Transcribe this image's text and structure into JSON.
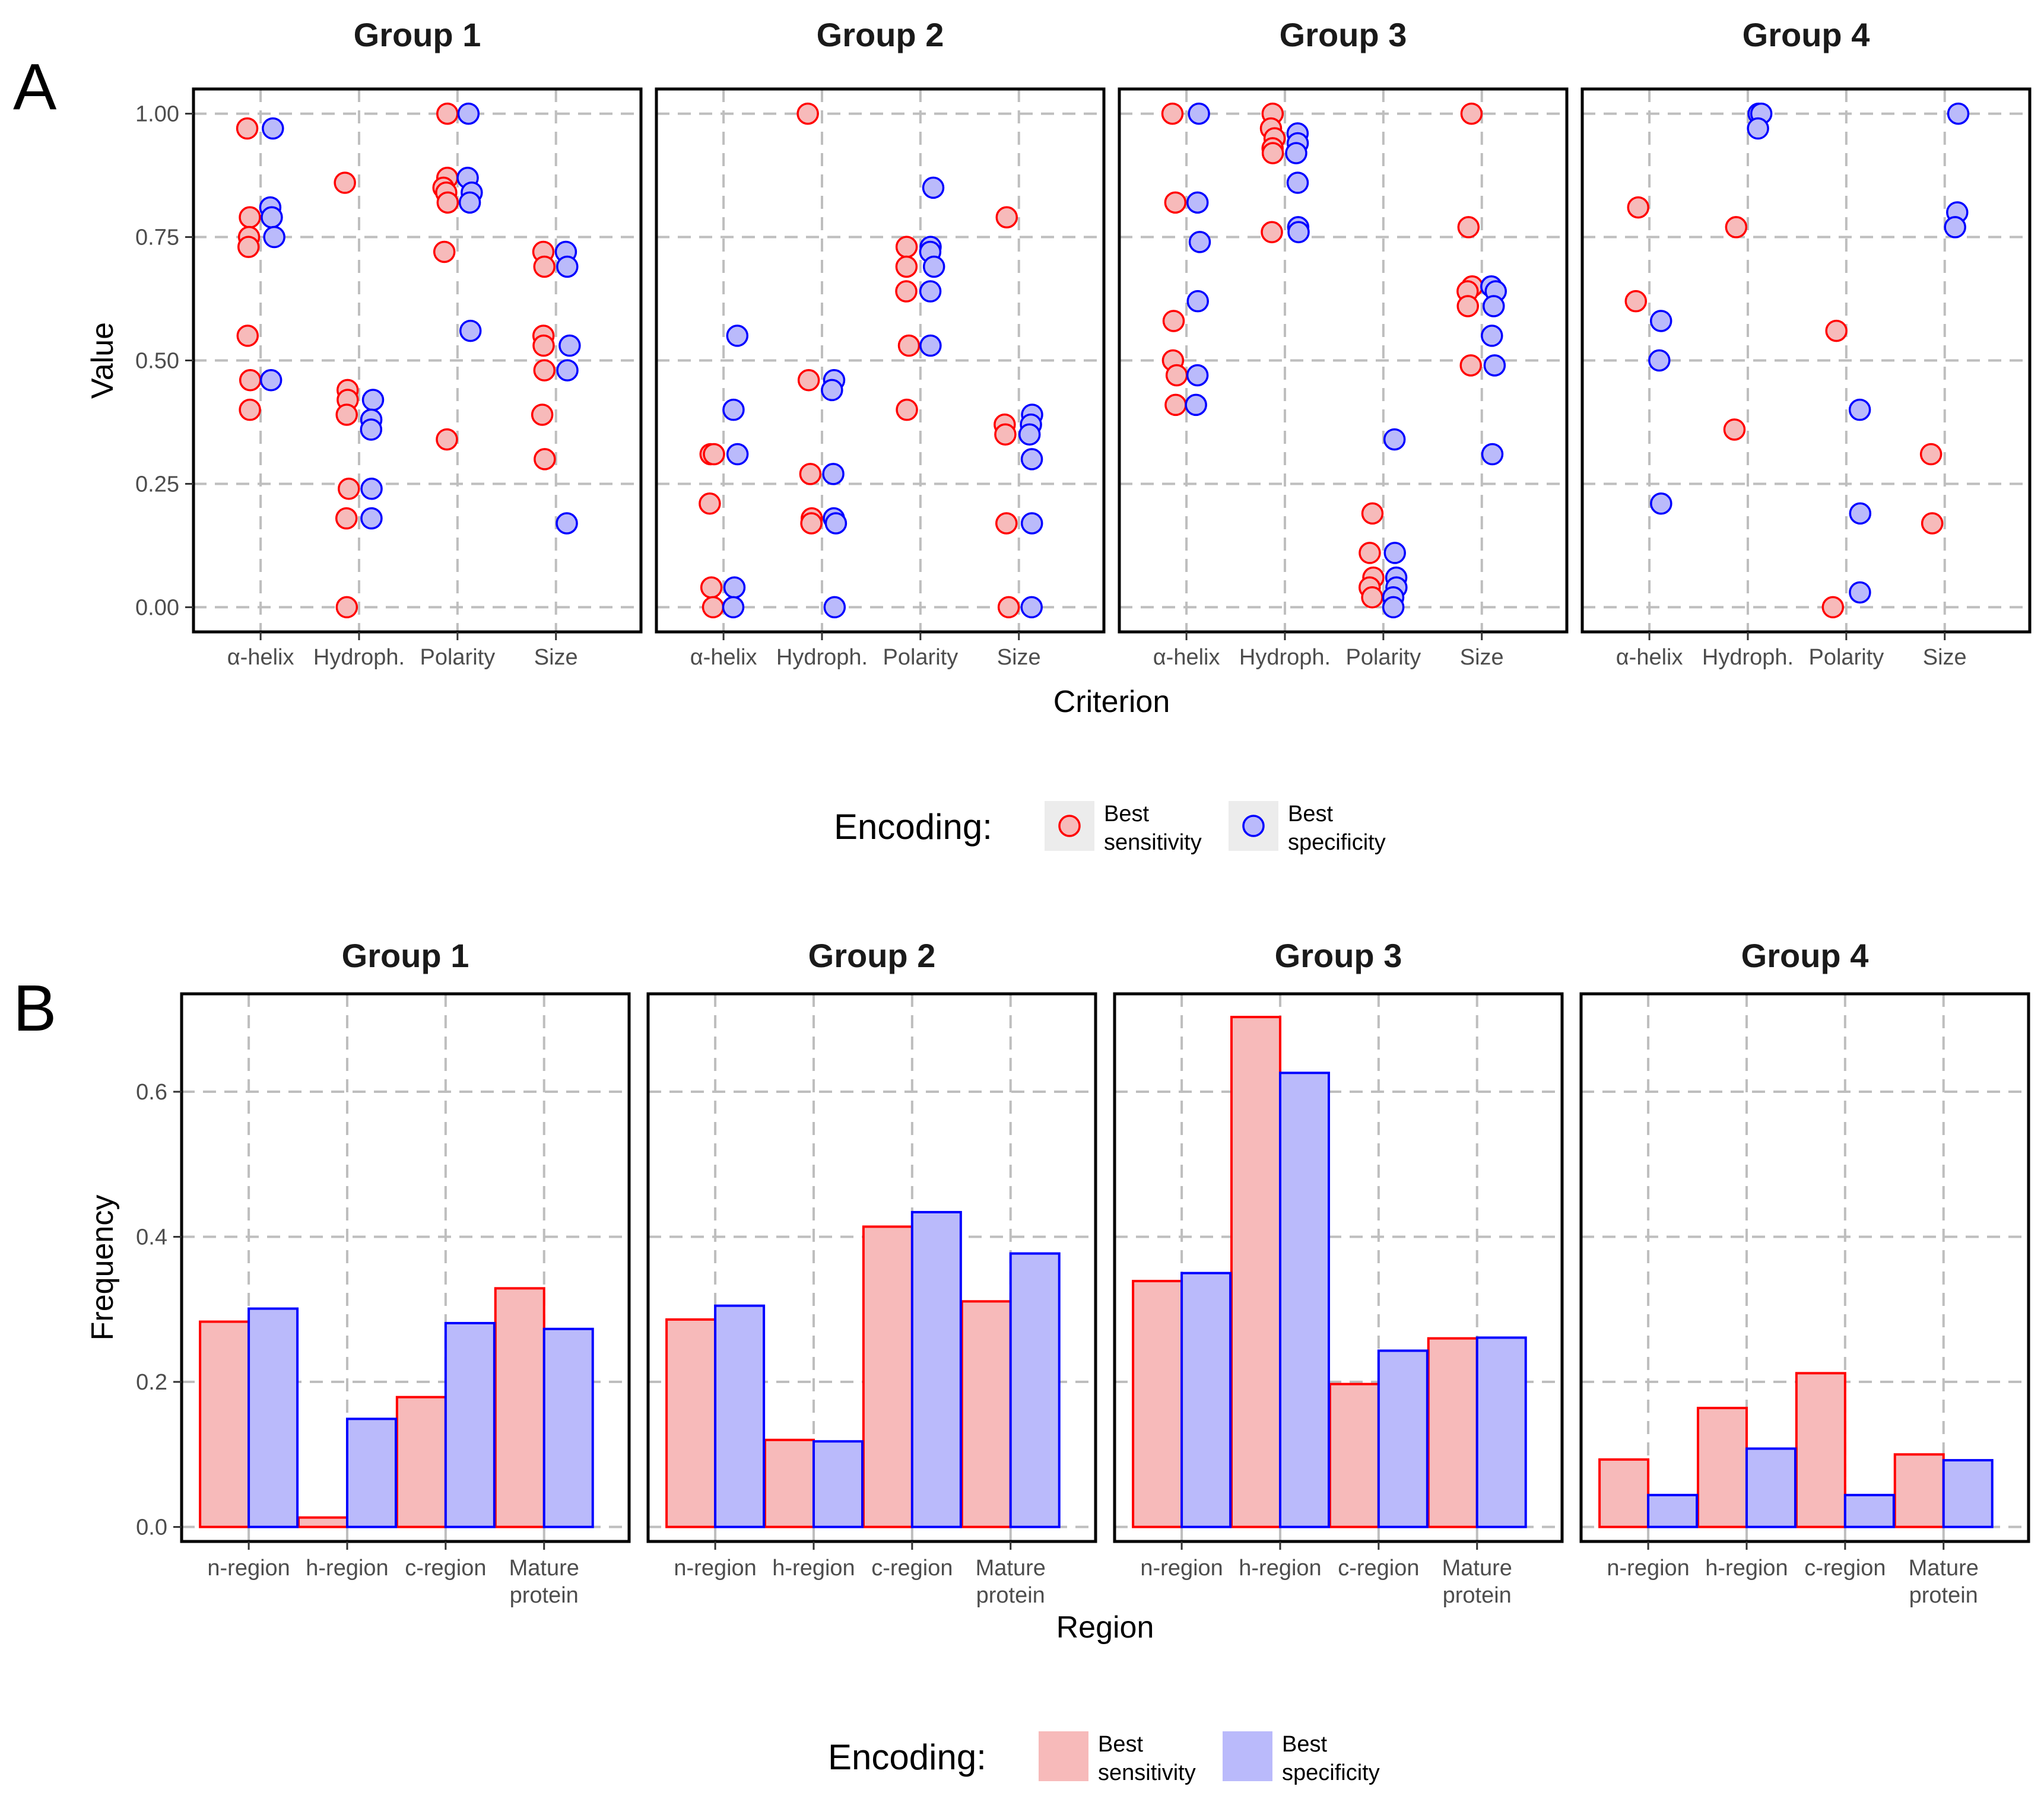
{
  "colors": {
    "sensitivity_stroke": "#ff0000",
    "sensitivity_fill": "#f7baba",
    "specificity_stroke": "#0000ff",
    "specificity_fill": "#babafb"
  },
  "chart_data": [
    {
      "panel": "A",
      "type": "scatter",
      "xlabel": "Criterion",
      "ylabel": "Value",
      "ylim": [
        -0.05,
        1.05
      ],
      "yticks": [
        "0.00",
        "0.25",
        "0.50",
        "0.75",
        "1.00"
      ],
      "yticks_values": [
        0,
        0.25,
        0.5,
        0.75,
        1.0
      ],
      "categories": [
        "α-helix",
        "Hydroph.",
        "Polarity",
        "Size"
      ],
      "legend": {
        "title": "Encoding:",
        "entries": [
          {
            "line1": "Best",
            "line2": "sensitivity"
          },
          {
            "line1": "Best",
            "line2": "specificity"
          }
        ]
      },
      "facets": [
        {
          "title": "Group 1",
          "series": [
            {
              "name": "Best sensitivity",
              "values": [
                [
                  0.97,
                  0.79,
                  0.75,
                  0.73,
                  0.55,
                  0.46,
                  0.4
                ],
                [
                  0.86,
                  0.44,
                  0.42,
                  0.39,
                  0.24,
                  0.18,
                  0.0
                ],
                [
                  1.0,
                  0.87,
                  0.85,
                  0.84,
                  0.82,
                  0.72,
                  0.34
                ],
                [
                  0.72,
                  0.69,
                  0.55,
                  0.53,
                  0.48,
                  0.39,
                  0.3
                ]
              ]
            },
            {
              "name": "Best specificity",
              "values": [
                [
                  0.97,
                  0.81,
                  0.79,
                  0.75,
                  0.46
                ],
                [
                  0.42,
                  0.38,
                  0.36,
                  0.24,
                  0.18
                ],
                [
                  1.0,
                  0.87,
                  0.84,
                  0.82,
                  0.56
                ],
                [
                  0.72,
                  0.69,
                  0.53,
                  0.48,
                  0.17
                ]
              ]
            }
          ]
        },
        {
          "title": "Group 2",
          "series": [
            {
              "name": "Best sensitivity",
              "values": [
                [
                  0.31,
                  0.31,
                  0.21,
                  0.04,
                  0.0
                ],
                [
                  1.0,
                  0.46,
                  0.27,
                  0.18,
                  0.17
                ],
                [
                  0.73,
                  0.69,
                  0.64,
                  0.53,
                  0.4
                ],
                [
                  0.79,
                  0.37,
                  0.35,
                  0.17,
                  0.0
                ]
              ]
            },
            {
              "name": "Best specificity",
              "values": [
                [
                  0.55,
                  0.4,
                  0.31,
                  0.04,
                  0.0
                ],
                [
                  0.46,
                  0.44,
                  0.27,
                  0.18,
                  0.17,
                  0.0
                ],
                [
                  0.85,
                  0.73,
                  0.72,
                  0.69,
                  0.64,
                  0.53
                ],
                [
                  0.39,
                  0.37,
                  0.35,
                  0.3,
                  0.17,
                  0.0
                ]
              ]
            }
          ]
        },
        {
          "title": "Group 3",
          "series": [
            {
              "name": "Best sensitivity",
              "values": [
                [
                  1.0,
                  0.82,
                  0.58,
                  0.5,
                  0.47,
                  0.41
                ],
                [
                  1.0,
                  0.97,
                  0.95,
                  0.93,
                  0.92,
                  0.76
                ],
                [
                  0.19,
                  0.11,
                  0.06,
                  0.04,
                  0.02
                ],
                [
                  1.0,
                  0.77,
                  0.65,
                  0.64,
                  0.61,
                  0.49
                ]
              ]
            },
            {
              "name": "Best specificity",
              "values": [
                [
                  1.0,
                  0.82,
                  0.74,
                  0.62,
                  0.47,
                  0.41
                ],
                [
                  0.96,
                  0.94,
                  0.92,
                  0.86,
                  0.77,
                  0.76
                ],
                [
                  0.34,
                  0.11,
                  0.06,
                  0.04,
                  0.02,
                  0.0
                ],
                [
                  0.65,
                  0.64,
                  0.61,
                  0.55,
                  0.49,
                  0.31
                ]
              ]
            }
          ]
        },
        {
          "title": "Group 4",
          "series": [
            {
              "name": "Best sensitivity",
              "values": [
                [
                  0.81,
                  0.62
                ],
                [
                  0.77,
                  0.36
                ],
                [
                  0.56,
                  0.0
                ],
                [
                  0.31,
                  0.17
                ]
              ]
            },
            {
              "name": "Best specificity",
              "values": [
                [
                  0.58,
                  0.5,
                  0.21
                ],
                [
                  1.0,
                  1.0,
                  0.97
                ],
                [
                  0.4,
                  0.19,
                  0.03
                ],
                [
                  1.0,
                  0.8,
                  0.77
                ]
              ]
            }
          ]
        }
      ]
    },
    {
      "panel": "B",
      "type": "bar",
      "xlabel": "Region",
      "ylabel": "Frequency",
      "ylim": [
        -0.02,
        0.735
      ],
      "yticks": [
        "0.0",
        "0.2",
        "0.4",
        "0.6"
      ],
      "yticks_values": [
        0,
        0.2,
        0.4,
        0.6
      ],
      "categories": [
        [
          "n-region"
        ],
        [
          "h-region"
        ],
        [
          "c-region"
        ],
        [
          "Mature",
          "protein"
        ]
      ],
      "legend": {
        "title": "Encoding:",
        "entries": [
          {
            "line1": "Best",
            "line2": "sensitivity"
          },
          {
            "line1": "Best",
            "line2": "specificity"
          }
        ]
      },
      "facets": [
        {
          "title": "Group 1",
          "series": [
            {
              "name": "Best sensitivity",
              "values": [
                0.283,
                0.013,
                0.179,
                0.329
              ]
            },
            {
              "name": "Best specificity",
              "values": [
                0.301,
                0.149,
                0.281,
                0.273
              ]
            }
          ]
        },
        {
          "title": "Group 2",
          "series": [
            {
              "name": "Best sensitivity",
              "values": [
                0.286,
                0.12,
                0.414,
                0.311
              ]
            },
            {
              "name": "Best specificity",
              "values": [
                0.305,
                0.118,
                0.434,
                0.377
              ]
            }
          ]
        },
        {
          "title": "Group 3",
          "series": [
            {
              "name": "Best sensitivity",
              "values": [
                0.339,
                0.703,
                0.197,
                0.26
              ]
            },
            {
              "name": "Best specificity",
              "values": [
                0.35,
                0.626,
                0.243,
                0.261
              ]
            }
          ]
        },
        {
          "title": "Group 4",
          "series": [
            {
              "name": "Best sensitivity",
              "values": [
                0.093,
                0.164,
                0.212,
                0.1
              ]
            },
            {
              "name": "Best specificity",
              "values": [
                0.044,
                0.108,
                0.044,
                0.092
              ]
            }
          ]
        }
      ]
    }
  ]
}
